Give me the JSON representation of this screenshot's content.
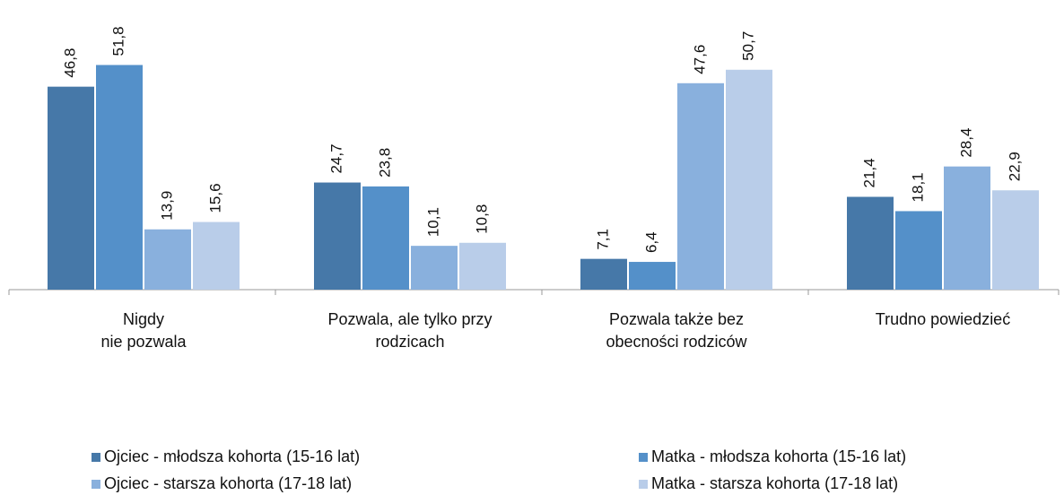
{
  "chart_data": {
    "type": "bar",
    "categories": [
      [
        "Nigdy",
        "nie pozwala"
      ],
      [
        "Pozwala, ale tylko przy",
        "rodzicach"
      ],
      [
        "Pozwala także bez",
        "obecności rodziców"
      ],
      [
        "Trudno powiedzieć"
      ]
    ],
    "series": [
      {
        "name": "Ojciec - młodsza kohorta (15-16 lat)",
        "color": "#4678a8",
        "values": [
          46.8,
          24.7,
          7.1,
          21.4
        ],
        "value_labels": [
          "46,8",
          "24,7",
          "7,1",
          "21,4"
        ]
      },
      {
        "name": "Matka - młodsza kohorta (15-16 lat)",
        "color": "#5490c9",
        "values": [
          51.8,
          23.8,
          6.4,
          18.1
        ],
        "value_labels": [
          "51,8",
          "23,8",
          "6,4",
          "18,1"
        ]
      },
      {
        "name": "Ojciec - starsza kohorta (17-18 lat)",
        "color": "#89b0dd",
        "values": [
          13.9,
          10.1,
          47.6,
          28.4
        ],
        "value_labels": [
          "13,9",
          "10,1",
          "47,6",
          "28,4"
        ]
      },
      {
        "name": "Matka - starsza kohorta (17-18 lat)",
        "color": "#b9cde9",
        "values": [
          15.6,
          10.8,
          50.7,
          22.9
        ],
        "value_labels": [
          "15,6",
          "10,8",
          "50,7",
          "22,9"
        ]
      }
    ],
    "ylim": [
      0,
      55
    ]
  }
}
